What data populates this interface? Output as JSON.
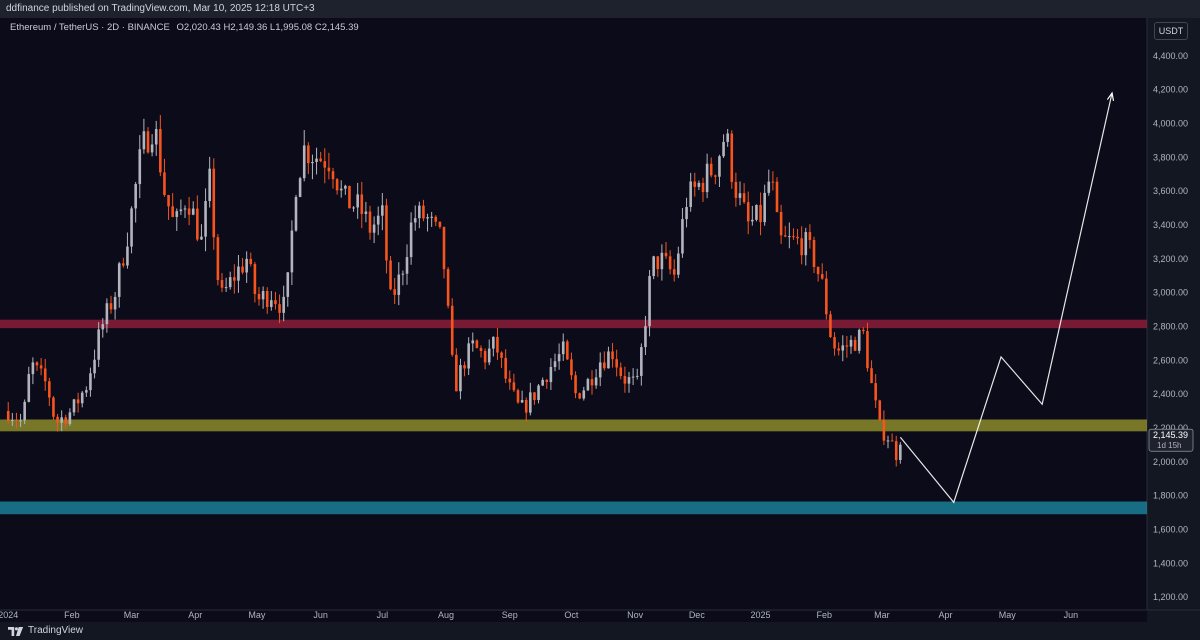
{
  "topbar": {
    "text": "ddfinance published on TradingView.com, Mar 10, 2025 12:18 UTC+3"
  },
  "header": {
    "symbol": "Ethereum / TetherUS · 2D · BINANCE",
    "ohlc": "O2,020.43  H2,149.36  L1,995.08  C2,145.39"
  },
  "currency_badge": "USDT",
  "price_tag": {
    "price": "2,145.39",
    "countdown": "1d 15h"
  },
  "footer": {
    "brand": "TradingView"
  },
  "colors": {
    "bg": "#0b0b1a",
    "up": "#b2b5be",
    "down": "#f7541e",
    "zone_red": "#8c1d3a",
    "zone_yellow": "#8c8a2a",
    "zone_teal": "#1a7f98",
    "projection": "#ffffff"
  },
  "chart_data": {
    "type": "candlestick",
    "ylim": [
      1100,
      4600
    ],
    "y_ticks": [
      "1,200.00",
      "1,400.00",
      "1,600.00",
      "1,800.00",
      "2,000.00",
      "2,200.00",
      "2,400.00",
      "2,600.00",
      "2,800.00",
      "3,000.00",
      "3,200.00",
      "3,400.00",
      "3,600.00",
      "3,800.00",
      "4,000.00",
      "4,200.00",
      "4,400.00"
    ],
    "x_ticks": [
      "2024",
      "Feb",
      "Mar",
      "Apr",
      "May",
      "Jun",
      "Jul",
      "Aug",
      "Sep",
      "Oct",
      "Nov",
      "Dec",
      "2025",
      "Feb",
      "Mar",
      "Apr",
      "May",
      "Jun"
    ],
    "zones": [
      {
        "from": 2790,
        "to": 2840,
        "color": "zone_red"
      },
      {
        "from": 2180,
        "to": 2250,
        "color": "zone_yellow"
      },
      {
        "from": 1690,
        "to": 1765,
        "color": "zone_teal"
      }
    ],
    "price_path": [
      [
        "2024-01-01",
        2300
      ],
      [
        "2024-01-08",
        2230
      ],
      [
        "2024-01-12",
        2580
      ],
      [
        "2024-01-20",
        2450
      ],
      [
        "2024-01-24",
        2230
      ],
      [
        "2024-02-01",
        2300
      ],
      [
        "2024-02-08",
        2450
      ],
      [
        "2024-02-15",
        2780
      ],
      [
        "2024-02-22",
        3000
      ],
      [
        "2024-02-29",
        3400
      ],
      [
        "2024-03-06",
        3850
      ],
      [
        "2024-03-12",
        4000
      ],
      [
        "2024-03-17",
        3600
      ],
      [
        "2024-03-22",
        3380
      ],
      [
        "2024-03-28",
        3580
      ],
      [
        "2024-04-04",
        3300
      ],
      [
        "2024-04-08",
        3650
      ],
      [
        "2024-04-13",
        2950
      ],
      [
        "2024-04-20",
        3100
      ],
      [
        "2024-04-26",
        3200
      ],
      [
        "2024-05-01",
        2950
      ],
      [
        "2024-05-08",
        3000
      ],
      [
        "2024-05-15",
        2900
      ],
      [
        "2024-05-20",
        3650
      ],
      [
        "2024-05-24",
        3850
      ],
      [
        "2024-05-31",
        3800
      ],
      [
        "2024-06-06",
        3780
      ],
      [
        "2024-06-12",
        3550
      ],
      [
        "2024-06-20",
        3500
      ],
      [
        "2024-06-25",
        3380
      ],
      [
        "2024-07-01",
        3450
      ],
      [
        "2024-07-05",
        2950
      ],
      [
        "2024-07-10",
        3100
      ],
      [
        "2024-07-16",
        3450
      ],
      [
        "2024-07-22",
        3450
      ],
      [
        "2024-07-30",
        3300
      ],
      [
        "2024-08-05",
        2430
      ],
      [
        "2024-08-10",
        2600
      ],
      [
        "2024-08-14",
        2680
      ],
      [
        "2024-08-20",
        2620
      ],
      [
        "2024-08-25",
        2700
      ],
      [
        "2024-08-31",
        2450
      ],
      [
        "2024-09-06",
        2300
      ],
      [
        "2024-09-12",
        2380
      ],
      [
        "2024-09-20",
        2550
      ],
      [
        "2024-09-27",
        2650
      ],
      [
        "2024-10-03",
        2400
      ],
      [
        "2024-10-08",
        2450
      ],
      [
        "2024-10-15",
        2600
      ],
      [
        "2024-10-21",
        2650
      ],
      [
        "2024-10-26",
        2500
      ],
      [
        "2024-11-02",
        2450
      ],
      [
        "2024-11-09",
        3150
      ],
      [
        "2024-11-13",
        3200
      ],
      [
        "2024-11-20",
        3100
      ],
      [
        "2024-11-26",
        3550
      ],
      [
        "2024-12-03",
        3650
      ],
      [
        "2024-12-10",
        3750
      ],
      [
        "2024-12-15",
        3950
      ],
      [
        "2024-12-19",
        3650
      ],
      [
        "2024-12-26",
        3400
      ],
      [
        "2025-01-01",
        3450
      ],
      [
        "2025-01-06",
        3700
      ],
      [
        "2025-01-10",
        3300
      ],
      [
        "2025-01-16",
        3300
      ],
      [
        "2025-01-22",
        3300
      ],
      [
        "2025-01-27",
        3200
      ],
      [
        "2025-02-01",
        3000
      ],
      [
        "2025-02-03",
        2800
      ],
      [
        "2025-02-07",
        2650
      ],
      [
        "2025-02-14",
        2700
      ],
      [
        "2025-02-20",
        2750
      ],
      [
        "2025-02-24",
        2450
      ],
      [
        "2025-02-28",
        2200
      ],
      [
        "2025-03-04",
        2150
      ],
      [
        "2025-03-08",
        2050
      ],
      [
        "2025-03-10",
        2145
      ]
    ],
    "projection": [
      [
        "2025-03-10",
        2145
      ],
      [
        "2025-04-05",
        1760
      ],
      [
        "2025-04-28",
        2620
      ],
      [
        "2025-05-18",
        2340
      ],
      [
        "2025-06-21",
        4180
      ]
    ]
  }
}
